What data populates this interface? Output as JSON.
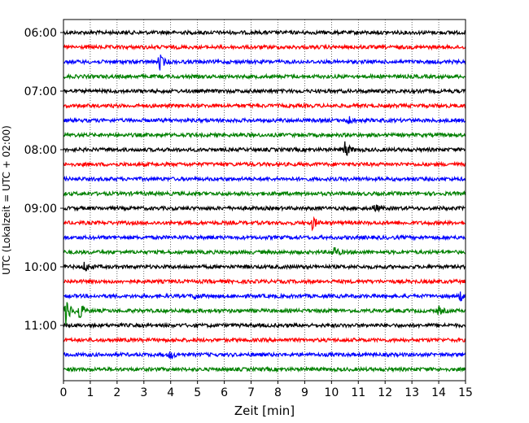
{
  "chart_data": {
    "type": "line",
    "title": "",
    "xlabel": "Zeit  [min]",
    "ylabel": "UTC (Lokalzeit = UTC + 02:00)",
    "xlim": [
      0,
      15
    ],
    "x_ticks": [
      0,
      1,
      2,
      3,
      4,
      5,
      6,
      7,
      8,
      9,
      10,
      11,
      12,
      13,
      14,
      15
    ],
    "x_grid": true,
    "y_tick_labels": [
      "06:00",
      "07:00",
      "08:00",
      "09:00",
      "10:00",
      "11:00"
    ],
    "row_interval_minutes": 15,
    "row_start": "06:00",
    "row_count": 24,
    "trace_colors": [
      "#000000",
      "#ff0000",
      "#0000ff",
      "#008000"
    ],
    "events": [
      {
        "row": 2,
        "minute": 3.6,
        "amplitude": 1.2
      },
      {
        "row": 6,
        "minute": 10.6,
        "amplitude": 0.8
      },
      {
        "row": 8,
        "minute": 10.5,
        "amplitude": 1.4
      },
      {
        "row": 12,
        "minute": 11.6,
        "amplitude": 0.6
      },
      {
        "row": 13,
        "minute": 9.3,
        "amplitude": 1.0
      },
      {
        "row": 15,
        "minute": 10.1,
        "amplitude": 0.9
      },
      {
        "row": 16,
        "minute": 0.8,
        "amplitude": 0.8
      },
      {
        "row": 18,
        "minute": 4.9,
        "amplitude": 0.5
      },
      {
        "row": 18,
        "minute": 14.8,
        "amplitude": 0.7
      },
      {
        "row": 19,
        "minute": 0.1,
        "amplitude": 2.2
      },
      {
        "row": 19,
        "minute": 0.6,
        "amplitude": 1.5
      },
      {
        "row": 19,
        "minute": 14.0,
        "amplitude": 0.6
      },
      {
        "row": 22,
        "minute": 4.0,
        "amplitude": 0.6
      }
    ]
  }
}
